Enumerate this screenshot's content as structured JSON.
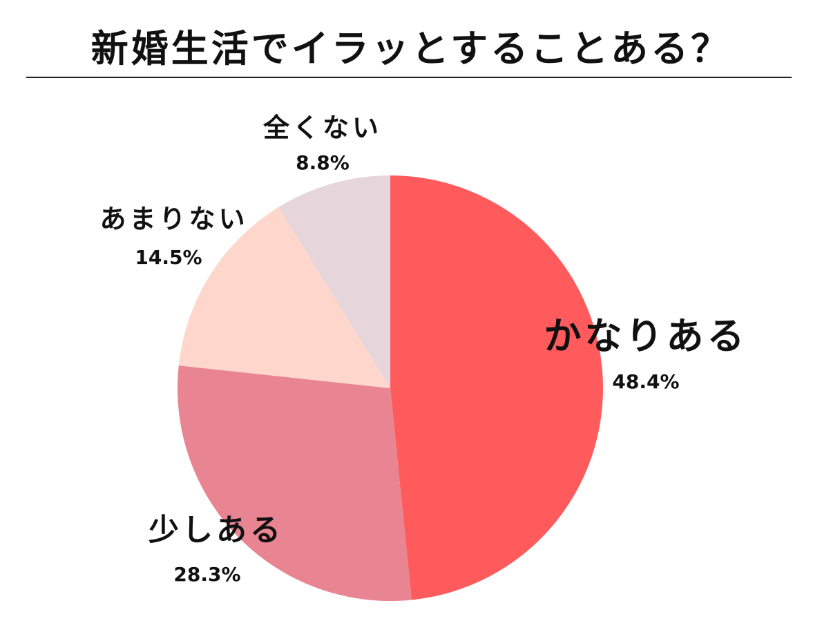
{
  "title": "新婚生活でイラッとすることある？",
  "chart_data": {
    "type": "pie",
    "title": "新婚生活でイラッとすることある？",
    "start_angle": "12 o'clock",
    "direction": "clockwise",
    "slices": [
      {
        "label": "かなりある",
        "value": 48.4,
        "value_label": "48.4%",
        "color": "#ff5a5c"
      },
      {
        "label": "少しある",
        "value": 28.3,
        "value_label": "28.3%",
        "color": "#e98592"
      },
      {
        "label": "あまりない",
        "value": 14.5,
        "value_label": "14.5%",
        "color": "#ffd6cb"
      },
      {
        "label": "全くない",
        "value": 8.8,
        "value_label": "8.8%",
        "color": "#e6d5db"
      }
    ]
  }
}
